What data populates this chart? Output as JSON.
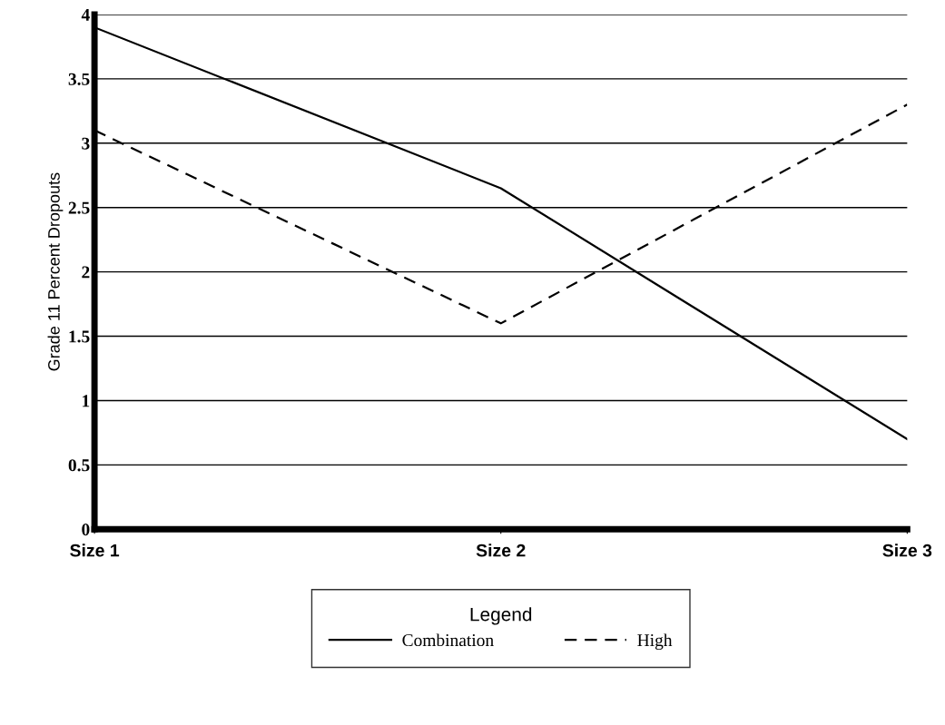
{
  "chart_data": {
    "type": "line",
    "ylabel": "Grade 11 Percent Dropouts",
    "categories": [
      "Size 1",
      "Size 2",
      "Size 3"
    ],
    "series": [
      {
        "name": "Combination",
        "color": "#000000",
        "values": [
          3.9,
          2.65,
          0.7
        ],
        "line_style": "solid"
      },
      {
        "name": "High",
        "color": "#000000",
        "values": [
          3.1,
          1.6,
          3.3
        ],
        "line_style": "dashed"
      }
    ],
    "ylim": [
      0,
      4
    ],
    "yticks": [
      0,
      0.5,
      1,
      1.5,
      2,
      2.5,
      3,
      3.5,
      4
    ],
    "grid": "y",
    "legend": "bottom",
    "legend_title": "Legend",
    "marker": "none"
  }
}
